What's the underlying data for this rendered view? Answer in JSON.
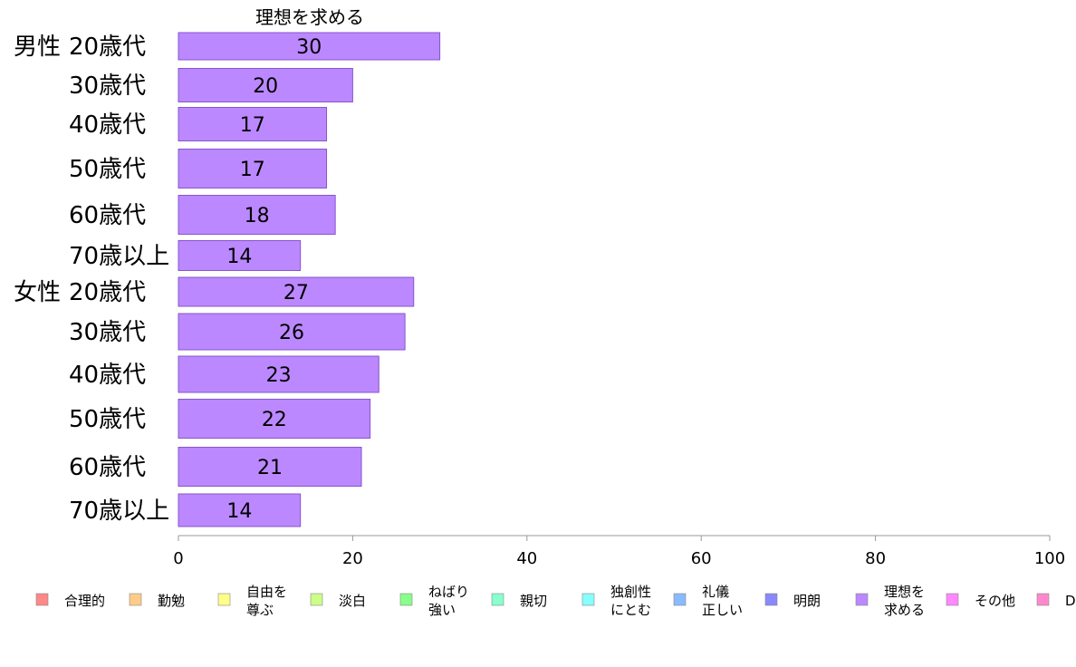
{
  "chart_data": {
    "type": "bar",
    "orientation": "horizontal",
    "title": "理想を求める",
    "xlim": [
      0,
      100
    ],
    "xticks": [
      0,
      20,
      40,
      60,
      80,
      100
    ],
    "groups": [
      {
        "label": "男性",
        "categories": [
          "20歳代",
          "30歳代",
          "40歳代",
          "50歳代",
          "60歳代",
          "70歳以上"
        ],
        "values": [
          30,
          20,
          17,
          17,
          18,
          14
        ]
      },
      {
        "label": "女性",
        "categories": [
          "20歳代",
          "30歳代",
          "40歳代",
          "50歳代",
          "60歳代",
          "70歳以上"
        ],
        "values": [
          27,
          26,
          23,
          22,
          21,
          14
        ]
      }
    ],
    "bar_color": "#bb88ff",
    "bar_stroke": "#8855cc",
    "axis_color": "#999999",
    "legend_position": "bottom",
    "legend": [
      {
        "label": "合理的",
        "color": "#ff8888"
      },
      {
        "label": "勤勉",
        "color": "#ffcc88"
      },
      {
        "label": "自由を\n尊ぶ",
        "color": "#ffff88"
      },
      {
        "label": "淡白",
        "color": "#ccff88"
      },
      {
        "label": "ねばり\n強い",
        "color": "#88ff88"
      },
      {
        "label": "親切",
        "color": "#88ffcc"
      },
      {
        "label": "独創性\nにとむ",
        "color": "#88ffff"
      },
      {
        "label": "礼儀\n正しい",
        "color": "#88bbff"
      },
      {
        "label": "明朗",
        "color": "#8888ff"
      },
      {
        "label": "理想を\n求める",
        "color": "#bb88ff"
      },
      {
        "label": "その他",
        "color": "#ff88ff"
      },
      {
        "label": "D",
        "color": "#ff88cc"
      }
    ]
  }
}
